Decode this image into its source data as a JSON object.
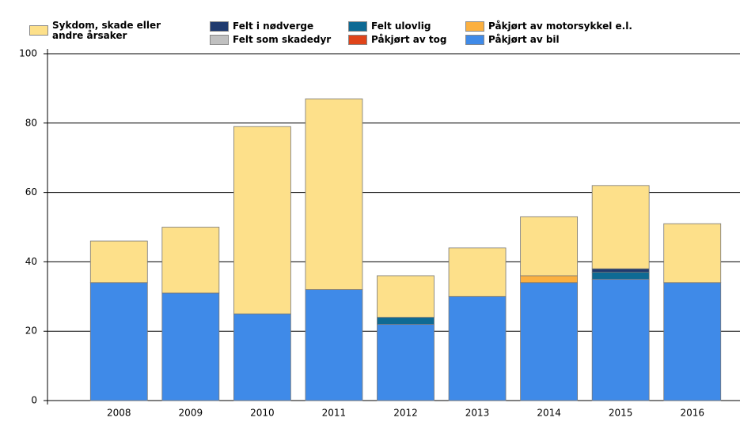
{
  "chart_data": {
    "type": "stacked_bar",
    "categories": [
      "2008",
      "2009",
      "2010",
      "2011",
      "2012",
      "2013",
      "2014",
      "2015",
      "2016"
    ],
    "series": [
      {
        "name": "Sykdom, skade eller andre årsaker",
        "color": "#fde08a",
        "values": [
          12,
          19,
          54,
          55,
          12,
          14,
          17,
          24,
          17
        ]
      },
      {
        "name": "Felt i nødverge",
        "color": "#1f3a6e",
        "values": [
          0,
          0,
          0,
          0,
          0,
          0,
          0,
          1,
          0
        ]
      },
      {
        "name": "Felt som skadedyr",
        "color": "#c0c0c0",
        "values": [
          0,
          0,
          0,
          0,
          0,
          0,
          0,
          0,
          0
        ]
      },
      {
        "name": "Felt ulovlig",
        "color": "#0e6a94",
        "values": [
          0,
          0,
          0,
          0,
          2,
          0,
          0,
          2,
          0
        ]
      },
      {
        "name": "Påkjørt av tog",
        "color": "#e0441a",
        "values": [
          0,
          0,
          0,
          0,
          0,
          0,
          0,
          0,
          0
        ]
      },
      {
        "name": "Påkjørt av motorsykkel e.l.",
        "color": "#fbb040",
        "values": [
          0,
          0,
          0,
          0,
          0,
          0,
          2,
          0,
          0
        ]
      },
      {
        "name": "Påkjørt av bil",
        "color": "#3f8ae8",
        "values": [
          34,
          31,
          25,
          32,
          22,
          30,
          34,
          35,
          34
        ]
      }
    ],
    "ylim": [
      0,
      100
    ],
    "yticks": [
      0,
      20,
      40,
      60,
      80,
      100
    ],
    "grid": true
  }
}
